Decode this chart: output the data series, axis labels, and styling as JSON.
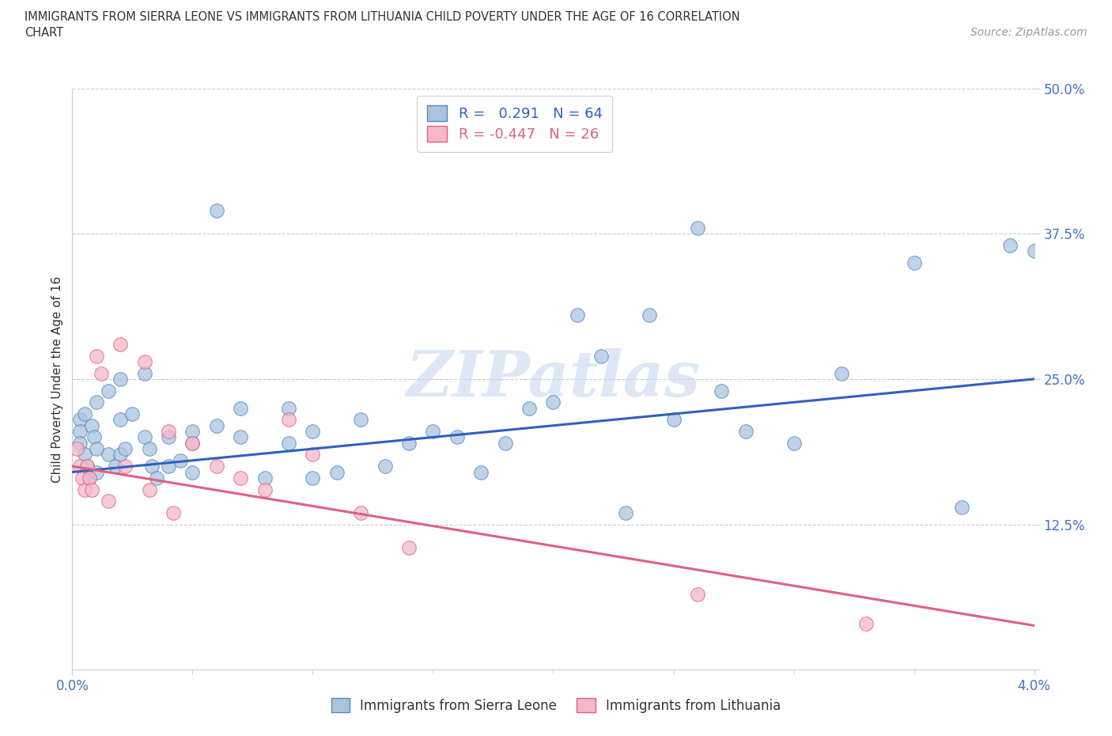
{
  "title_line1": "IMMIGRANTS FROM SIERRA LEONE VS IMMIGRANTS FROM LITHUANIA CHILD POVERTY UNDER THE AGE OF 16 CORRELATION",
  "title_line2": "CHART",
  "source_text": "Source: ZipAtlas.com",
  "ylabel": "Child Poverty Under the Age of 16",
  "xlim": [
    0.0,
    0.04
  ],
  "ylim": [
    0.0,
    0.5
  ],
  "y_ticks": [
    0.0,
    0.125,
    0.25,
    0.375,
    0.5
  ],
  "y_tick_labels": [
    "",
    "12.5%",
    "25.0%",
    "37.5%",
    "50.0%"
  ],
  "sierra_leone_color": "#aac4e0",
  "sierra_leone_edge": "#5588bb",
  "lithuania_color": "#f5b8ca",
  "lithuania_edge": "#e06080",
  "trend_sierra_color": "#3060c0",
  "trend_lithuania_color": "#e06080",
  "watermark": "ZIPatlas",
  "sl_x": [
    0.0003,
    0.0003,
    0.0003,
    0.0005,
    0.0005,
    0.0006,
    0.0007,
    0.0008,
    0.0009,
    0.001,
    0.001,
    0.001,
    0.0015,
    0.0015,
    0.0018,
    0.002,
    0.002,
    0.002,
    0.0022,
    0.0025,
    0.003,
    0.003,
    0.0032,
    0.0033,
    0.0035,
    0.004,
    0.004,
    0.0045,
    0.005,
    0.005,
    0.005,
    0.006,
    0.006,
    0.007,
    0.007,
    0.008,
    0.009,
    0.009,
    0.01,
    0.01,
    0.011,
    0.012,
    0.013,
    0.014,
    0.015,
    0.016,
    0.017,
    0.018,
    0.019,
    0.02,
    0.021,
    0.022,
    0.023,
    0.024,
    0.025,
    0.026,
    0.027,
    0.028,
    0.03,
    0.032,
    0.035,
    0.037,
    0.039,
    0.04
  ],
  "sl_y": [
    0.215,
    0.205,
    0.195,
    0.22,
    0.185,
    0.175,
    0.165,
    0.21,
    0.2,
    0.23,
    0.19,
    0.17,
    0.24,
    0.185,
    0.175,
    0.25,
    0.215,
    0.185,
    0.19,
    0.22,
    0.255,
    0.2,
    0.19,
    0.175,
    0.165,
    0.2,
    0.175,
    0.18,
    0.205,
    0.195,
    0.17,
    0.395,
    0.21,
    0.225,
    0.2,
    0.165,
    0.225,
    0.195,
    0.205,
    0.165,
    0.17,
    0.215,
    0.175,
    0.195,
    0.205,
    0.2,
    0.17,
    0.195,
    0.225,
    0.23,
    0.305,
    0.27,
    0.135,
    0.305,
    0.215,
    0.38,
    0.24,
    0.205,
    0.195,
    0.255,
    0.35,
    0.14,
    0.365,
    0.36
  ],
  "lt_x": [
    0.0002,
    0.0003,
    0.0004,
    0.0005,
    0.0006,
    0.0007,
    0.0008,
    0.001,
    0.0012,
    0.0015,
    0.002,
    0.0022,
    0.003,
    0.0032,
    0.004,
    0.0042,
    0.005,
    0.006,
    0.007,
    0.008,
    0.009,
    0.01,
    0.012,
    0.014,
    0.026,
    0.033
  ],
  "lt_y": [
    0.19,
    0.175,
    0.165,
    0.155,
    0.175,
    0.165,
    0.155,
    0.27,
    0.255,
    0.145,
    0.28,
    0.175,
    0.265,
    0.155,
    0.205,
    0.135,
    0.195,
    0.175,
    0.165,
    0.155,
    0.215,
    0.185,
    0.135,
    0.105,
    0.065,
    0.04
  ],
  "sl_trend_x0": 0.0,
  "sl_trend_y0": 0.17,
  "sl_trend_x1": 0.04,
  "sl_trend_y1": 0.25,
  "lt_trend_x0": 0.0,
  "lt_trend_y0": 0.175,
  "lt_trend_x1": 0.04,
  "lt_trend_y1": 0.038
}
